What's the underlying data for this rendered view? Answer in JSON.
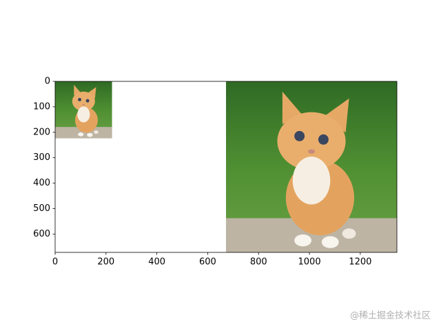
{
  "chart_data": {
    "type": "image",
    "images": [
      {
        "x": [
          0,
          224
        ],
        "y": [
          0,
          224
        ]
      },
      {
        "x": [
          672,
          1344
        ],
        "y": [
          0,
          672
        ]
      }
    ],
    "xlim": [
      0,
      1344
    ],
    "ylim": [
      672,
      0
    ],
    "xticks": [
      0,
      200,
      400,
      600,
      800,
      1000,
      1200
    ],
    "yticks": [
      0,
      100,
      200,
      300,
      400,
      500,
      600
    ]
  },
  "watermark": "@稀土掘金技术社区"
}
